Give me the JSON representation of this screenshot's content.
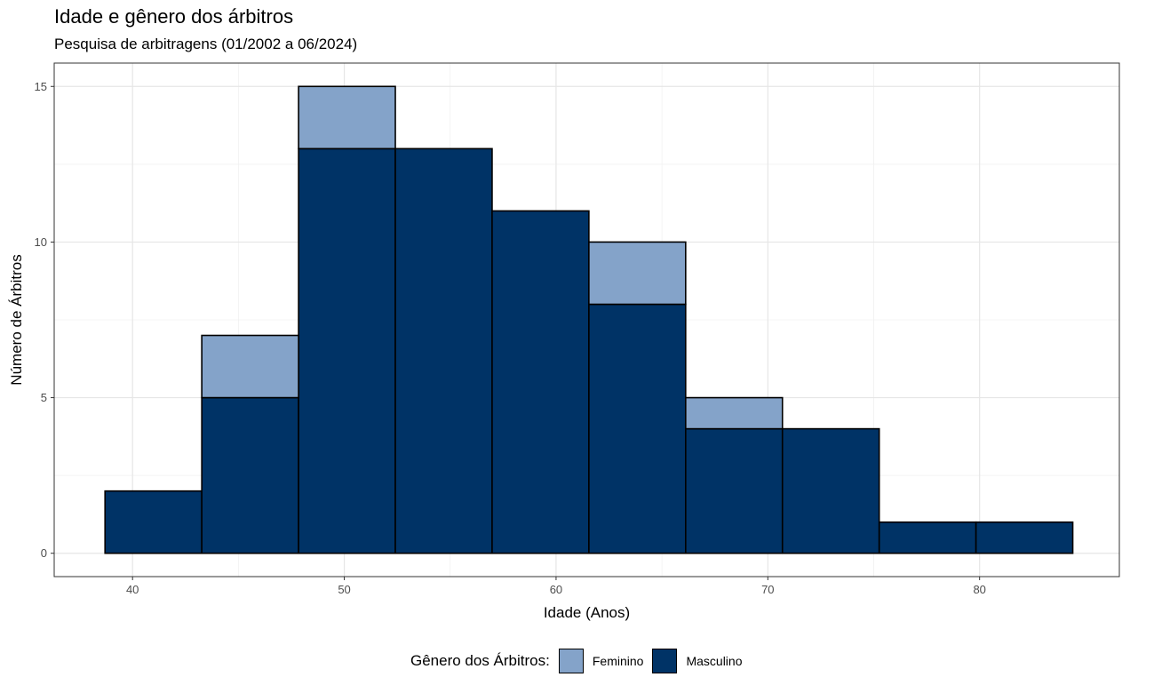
{
  "chart_data": {
    "type": "bar",
    "title": "Idade e gênero dos árbitros",
    "subtitle": "Pesquisa de arbitragens (01/2002 a 06/2024)",
    "xlabel": "Idade (Anos)",
    "ylabel": "Número de Árbitros",
    "xlim": [
      36.3,
      86.6
    ],
    "ylim": [
      -0.75,
      15.75
    ],
    "xticks": [
      40,
      50,
      60,
      70,
      80
    ],
    "yticks": [
      0,
      5,
      10,
      15
    ],
    "grid": true,
    "stacked": true,
    "bin_edges": [
      38.7,
      43.27,
      47.84,
      52.41,
      56.98,
      61.55,
      66.12,
      70.69,
      75.26,
      79.83,
      84.4
    ],
    "series": [
      {
        "name": "Masculino",
        "color": "#003366",
        "values": [
          2,
          5,
          13,
          13,
          11,
          8,
          4,
          4,
          1,
          1
        ]
      },
      {
        "name": "Feminino",
        "color": "#84a3c9",
        "values": [
          0,
          2,
          2,
          0,
          0,
          2,
          1,
          0,
          0,
          0
        ]
      }
    ],
    "legend": {
      "title": "Gênero dos Árbitros:",
      "position": "bottom",
      "entries": [
        "Feminino",
        "Masculino"
      ]
    }
  }
}
